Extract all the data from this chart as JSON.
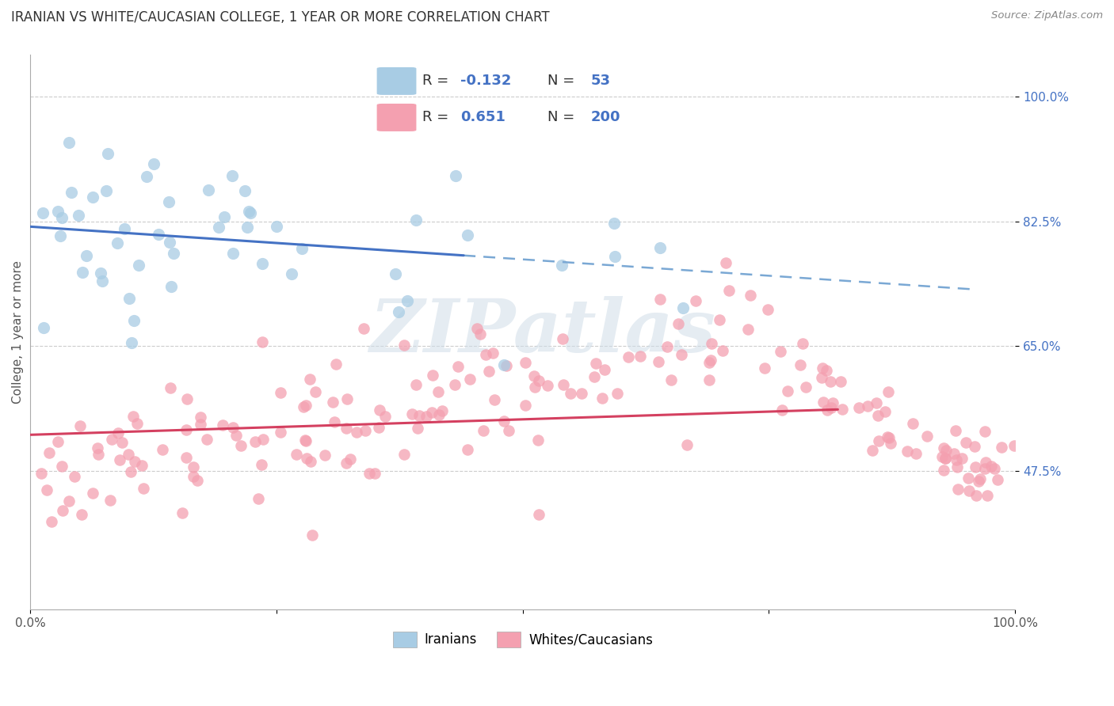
{
  "title": "IRANIAN VS WHITE/CAUCASIAN COLLEGE, 1 YEAR OR MORE CORRELATION CHART",
  "source": "Source: ZipAtlas.com",
  "ylabel": "College, 1 year or more",
  "xlim": [
    0.0,
    1.0
  ],
  "ylim": [
    0.28,
    1.06
  ],
  "yticks": [
    0.475,
    0.65,
    0.825,
    1.0
  ],
  "ytick_labels": [
    "47.5%",
    "65.0%",
    "82.5%",
    "100.0%"
  ],
  "blue_color": "#a8cce4",
  "pink_color": "#f4a0b0",
  "blue_line_color": "#4472c4",
  "pink_line_color": "#d44060",
  "dash_line_color": "#7aa8d4",
  "background_color": "#ffffff",
  "grid_color": "#cccccc",
  "R_blue": -0.132,
  "N_blue": 53,
  "R_pink": 0.651,
  "N_pink": 200,
  "watermark_text": "ZIPatlas",
  "title_fontsize": 12,
  "axis_label_fontsize": 11,
  "tick_fontsize": 11
}
